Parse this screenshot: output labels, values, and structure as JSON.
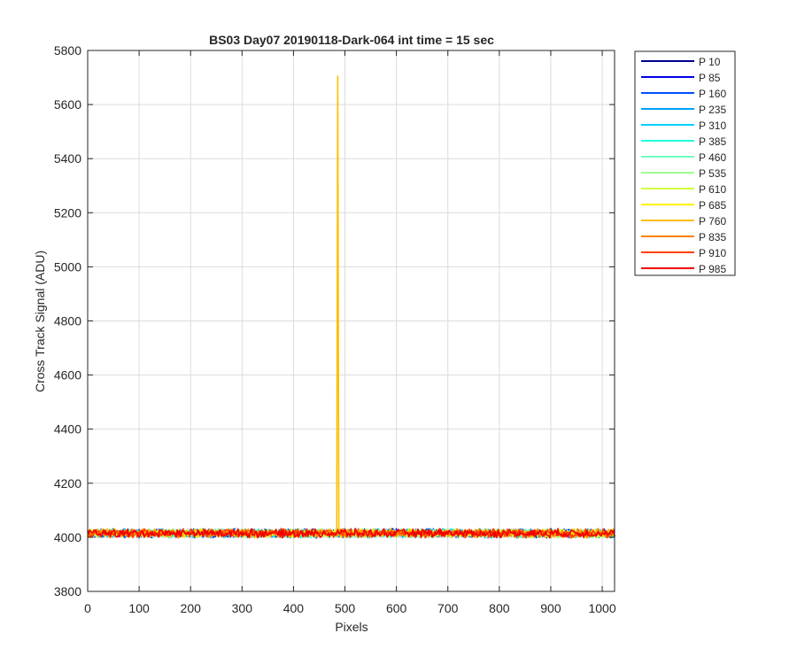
{
  "chart_data": {
    "type": "line",
    "title": "BS03 Day07 20190118-Dark-064 int time = 15 sec",
    "xlabel": "Pixels",
    "ylabel": "Cross Track Signal (ADU)",
    "xlim": [
      0,
      1024
    ],
    "ylim": [
      3800,
      5800
    ],
    "xticks": [
      0,
      100,
      200,
      300,
      400,
      500,
      600,
      700,
      800,
      900,
      1000
    ],
    "yticks": [
      3800,
      4000,
      4200,
      4400,
      4600,
      4800,
      5000,
      5200,
      5400,
      5600,
      5800
    ],
    "grid": true,
    "legend_position": "outside-top-right",
    "baseline": 4015,
    "noise_amplitude": 12,
    "series": [
      {
        "name": "P 10",
        "color": "#00008F"
      },
      {
        "name": "P 85",
        "color": "#0000EF"
      },
      {
        "name": "P 160",
        "color": "#0050FF"
      },
      {
        "name": "P 235",
        "color": "#009FFF"
      },
      {
        "name": "P 310",
        "color": "#00CFFF"
      },
      {
        "name": "P 385",
        "color": "#20FFDF"
      },
      {
        "name": "P 460",
        "color": "#6FFFBF"
      },
      {
        "name": "P 535",
        "color": "#9FFF8F"
      },
      {
        "name": "P 610",
        "color": "#CFFF40"
      },
      {
        "name": "P 685",
        "color": "#FFF000"
      },
      {
        "name": "P 760",
        "color": "#FFBF00",
        "spike": {
          "x_start": 484,
          "x_peak": 486,
          "x_end": 488,
          "value": 5705
        }
      },
      {
        "name": "P 835",
        "color": "#FF8000"
      },
      {
        "name": "P 910",
        "color": "#FF4000"
      },
      {
        "name": "P 985",
        "color": "#EF0000"
      }
    ]
  }
}
